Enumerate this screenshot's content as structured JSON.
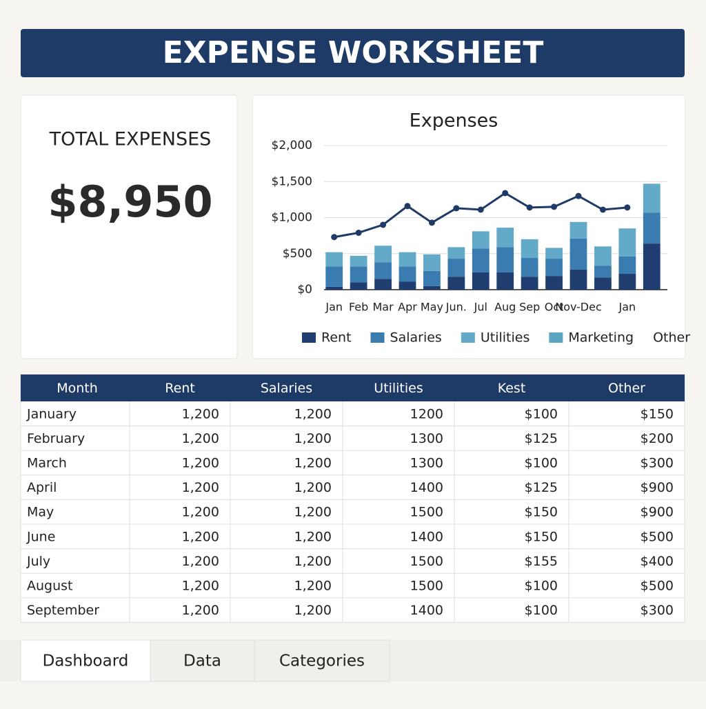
{
  "header": {
    "title": "EXPENSE WORKSHEET"
  },
  "summary": {
    "label": "TOTAL EXPENSES",
    "value": "$8,950"
  },
  "chart_data": {
    "type": "bar",
    "stacked": true,
    "title": "Expenses",
    "categories": [
      "Jan",
      "Feb",
      "Mar",
      "Apr",
      "May",
      "Jun.",
      "Jul",
      "Aug",
      "Sep",
      "Oct",
      "Nov-Dec",
      null,
      "Jan",
      null
    ],
    "series": [
      {
        "name": "Rent",
        "color": "#1f3d6e",
        "values": [
          40,
          100,
          150,
          110,
          50,
          180,
          240,
          240,
          180,
          190,
          280,
          170,
          220,
          640
        ]
      },
      {
        "name": "Salaries",
        "color": "#3a7bb0",
        "values": [
          280,
          220,
          230,
          210,
          210,
          250,
          330,
          350,
          260,
          240,
          430,
          160,
          240,
          430
        ]
      },
      {
        "name": "Utilities",
        "color": "#63a9c8",
        "values": [
          200,
          150,
          230,
          200,
          230,
          160,
          240,
          270,
          260,
          150,
          230,
          270,
          390,
          400
        ]
      },
      {
        "type": "line",
        "color": "#1f3a66",
        "values": [
          730,
          790,
          900,
          1160,
          930,
          1130,
          1110,
          1340,
          1140,
          1150,
          1300,
          1110,
          1140,
          null
        ]
      }
    ],
    "legend_extra": [
      {
        "name": "Marketing",
        "color": "#5aa6c0"
      },
      {
        "name": "Other"
      }
    ],
    "ylim": [
      0,
      2000
    ],
    "yticks": [
      {
        "value": 0,
        "label": "$0"
      },
      {
        "value": 500,
        "label": "$500"
      },
      {
        "value": 1000,
        "label": "$1,000"
      },
      {
        "value": 1500,
        "label": "$1,500"
      },
      {
        "value": 2000,
        "label": "$2,000"
      }
    ],
    "grid": true
  },
  "table": {
    "columns": [
      "Month",
      "Rent",
      "Salaries",
      "Utilities",
      "Kest",
      "Other"
    ],
    "rows": [
      [
        "January",
        "1,200",
        "1,200",
        "1200",
        "$100",
        "$150"
      ],
      [
        "February",
        "1,200",
        "1,200",
        "1300",
        "$125",
        "$200"
      ],
      [
        "March",
        "1,200",
        "1,200",
        "1300",
        "$100",
        "$300"
      ],
      [
        "April",
        "1,200",
        "1,200",
        "1400",
        "$125",
        "$900"
      ],
      [
        "May",
        "1,200",
        "1,200",
        "1500",
        "$150",
        "$900"
      ],
      [
        "June",
        "1,200",
        "1,200",
        "1400",
        "$150",
        "$500"
      ],
      [
        "July",
        "1,200",
        "1,200",
        "1500",
        "$155",
        "$400"
      ],
      [
        "August",
        "1,200",
        "1,200",
        "1500",
        "$100",
        "$500"
      ],
      [
        "September",
        "1,200",
        "1,200",
        "1400",
        "$100",
        "$300"
      ]
    ]
  },
  "tabs": [
    "Dashboard",
    "Data",
    "Categories"
  ]
}
